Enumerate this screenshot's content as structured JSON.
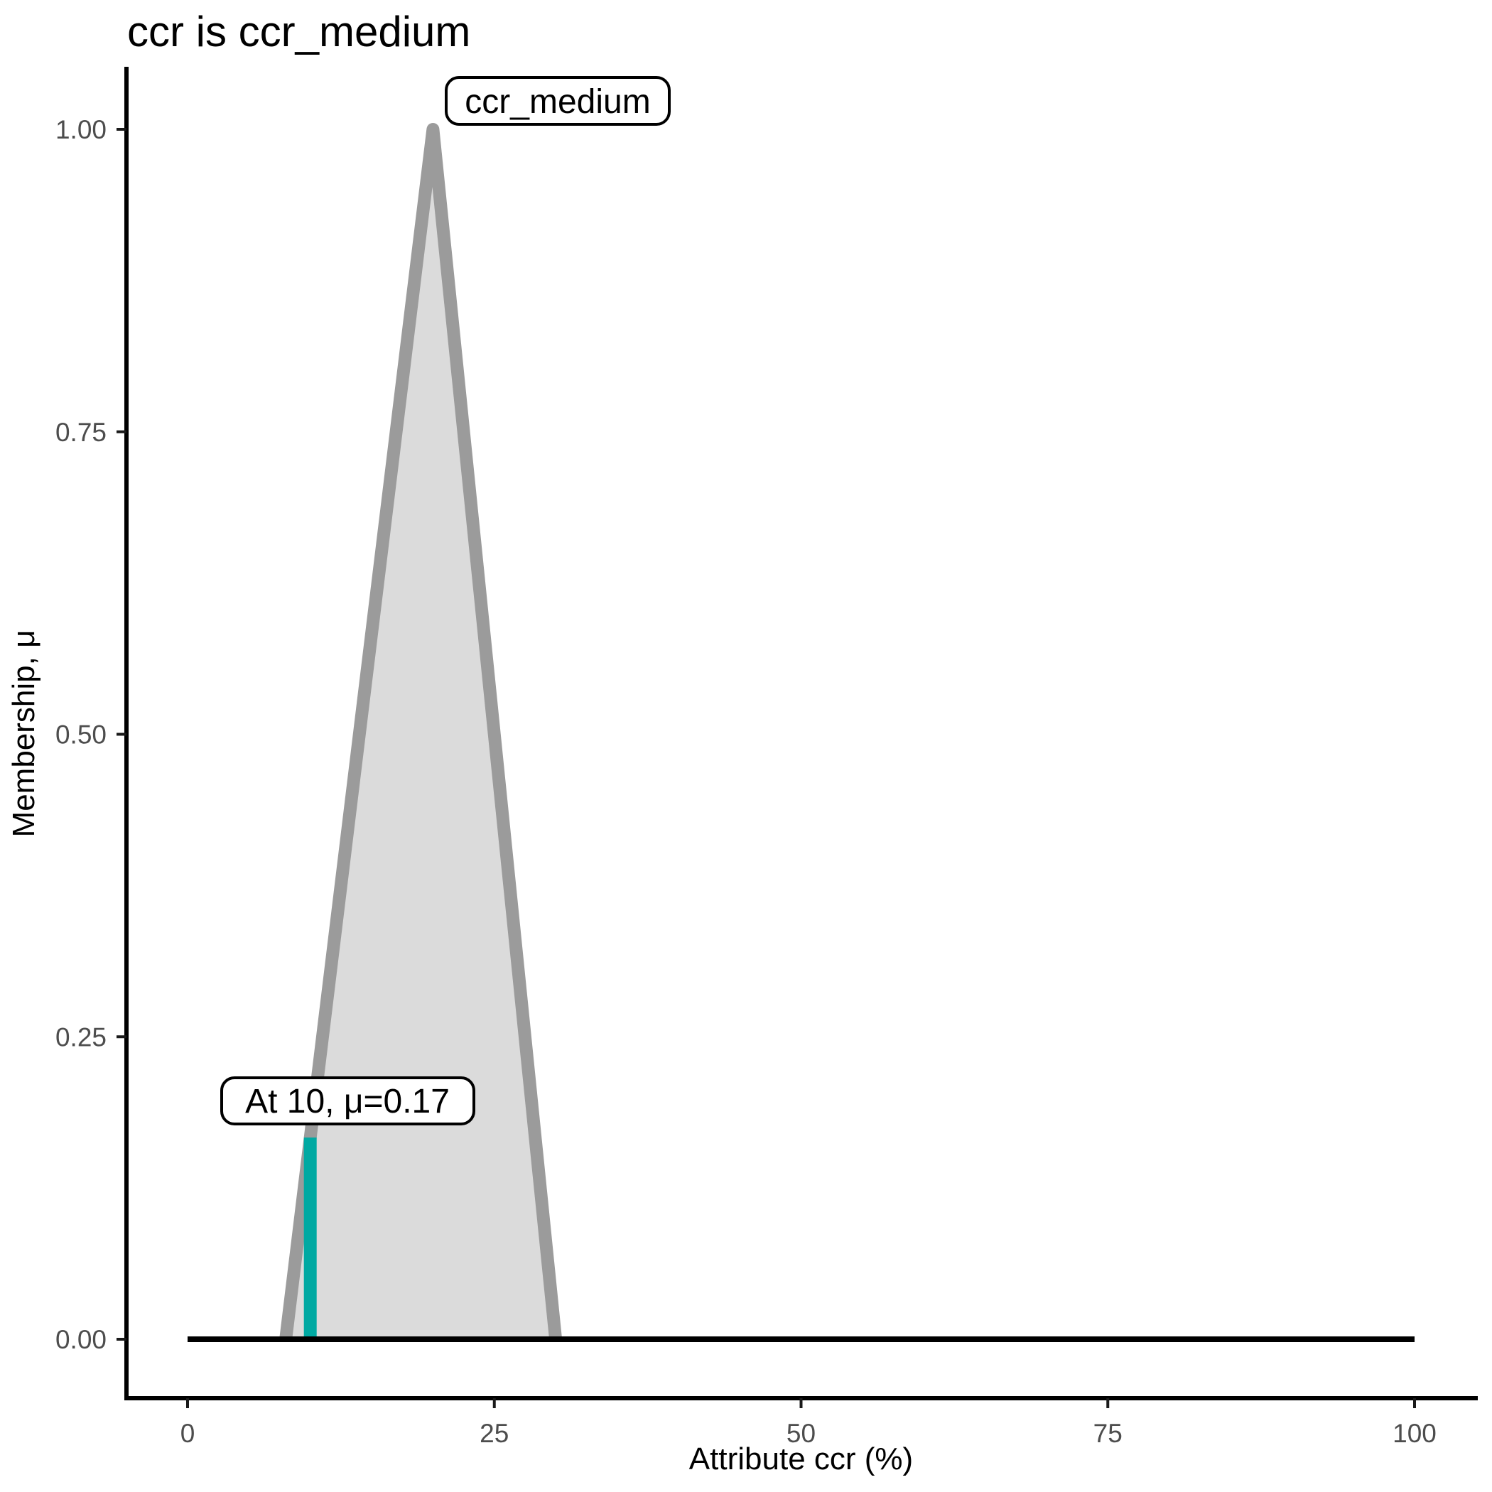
{
  "title": "ccr is ccr_medium",
  "axis": {
    "x_label": "Attribute ccr (%)",
    "y_label": "Membership, μ",
    "x_tick_labels": [
      "0",
      "25",
      "50",
      "75",
      "100"
    ],
    "y_tick_labels": [
      "0.00",
      "0.25",
      "0.50",
      "0.75",
      "1.00"
    ]
  },
  "annotations": {
    "mf_label": "ccr_medium",
    "input_label": "At 10, μ=0.17"
  },
  "colors": {
    "mf_fill": "#DBDBDB",
    "mf_stroke": "#9B9B9B",
    "input_line": "#00A9A2",
    "baseline": "#000000",
    "axis_line": "#000000",
    "tick_text": "#4D4D4D",
    "title_text": "#000000",
    "annotation_border": "#000000",
    "annotation_fill": "#FFFFFF",
    "background": "#FFFFFF"
  },
  "chart_data": {
    "type": "area",
    "title": "ccr is ccr_medium",
    "xlabel": "Attribute ccr (%)",
    "ylabel": "Membership, μ",
    "xlim": [
      0,
      100
    ],
    "ylim": [
      0,
      1
    ],
    "grid": false,
    "legend": "none",
    "x_ticks": [
      0,
      25,
      50,
      75,
      100
    ],
    "y_ticks": [
      0,
      0.25,
      0.5,
      0.75,
      1
    ],
    "series": [
      {
        "name": "ccr_medium",
        "kind": "triangular_membership_function",
        "vertices_x": [
          8,
          20,
          30
        ],
        "vertices_y": [
          0,
          1,
          0
        ],
        "peak_label": "ccr_medium"
      },
      {
        "name": "support_baseline",
        "kind": "line",
        "x": [
          0,
          100
        ],
        "y": [
          0,
          0
        ]
      },
      {
        "name": "input_value_marker",
        "kind": "vertical_segment",
        "x": 10,
        "y": [
          0,
          0.1667
        ],
        "membership_at_input": 0.17,
        "label": "At 10, μ=0.17"
      }
    ]
  }
}
